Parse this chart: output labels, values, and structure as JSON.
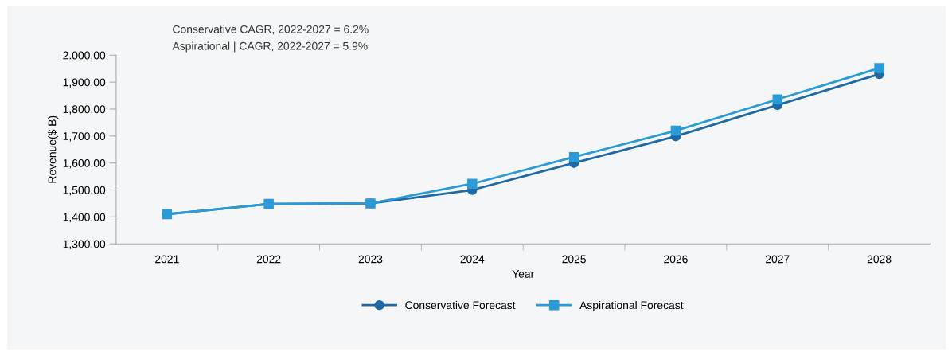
{
  "chart_data": {
    "type": "line",
    "xlabel": "Year",
    "ylabel": "Revenue($ B)",
    "categories": [
      "2021",
      "2022",
      "2023",
      "2024",
      "2025",
      "2026",
      "2027",
      "2028"
    ],
    "series": [
      {
        "name": "Conservative Forecast",
        "color": "#1f6aa5",
        "marker": "circle",
        "values": [
          1410,
          1448,
          1450,
          1500,
          1600,
          1699,
          1815,
          1930
        ]
      },
      {
        "name": "Aspirational Forecast",
        "color": "#2a9bd6",
        "marker": "square",
        "values": [
          1410,
          1448,
          1450,
          1523,
          1622,
          1720,
          1836,
          1952
        ]
      }
    ],
    "ylim": [
      1300,
      2000
    ],
    "yticks": [
      {
        "value": 1300,
        "label": "1,300.00"
      },
      {
        "value": 1400,
        "label": "1,400.00"
      },
      {
        "value": 1500,
        "label": "1,500.00"
      },
      {
        "value": 1600,
        "label": "1,600.00"
      },
      {
        "value": 1700,
        "label": "1,700.00"
      },
      {
        "value": 1800,
        "label": "1,800.00"
      },
      {
        "value": 1900,
        "label": "1,900.00"
      },
      {
        "value": 2000,
        "label": "2.000.00"
      }
    ],
    "annotations": [
      "Conservative CAGR, 2022-2027 = 6.2%",
      "Aspirational | CAGR, 2022-2027 = 5.9%"
    ],
    "grid": false,
    "legend": "bottom",
    "line_style": "solid"
  }
}
